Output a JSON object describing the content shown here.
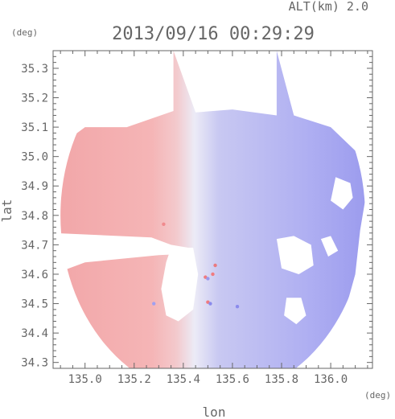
{
  "chart_data": {
    "type": "heatmap",
    "altitude_label": "ALT(km)  2.0",
    "timestamp": "2013/09/16 00:29:29",
    "xlabel": "lon",
    "ylabel": "lat",
    "xunit": "(deg)",
    "yunit": "(deg)",
    "xlim": [
      134.87,
      136.17
    ],
    "ylim": [
      34.28,
      35.36
    ],
    "xticks": [
      "135.0",
      "135.2",
      "135.4",
      "135.6",
      "135.8",
      "136.0"
    ],
    "yticks": [
      "34.3",
      "34.4",
      "34.5",
      "34.6",
      "34.7",
      "34.8",
      "34.9",
      "35.0",
      "35.1",
      "35.2",
      "35.3"
    ],
    "radar_center": {
      "lon": 135.52,
      "lat": 34.8
    },
    "radar_radius_deg": 0.62,
    "colors": {
      "positive": "#f5a3a6",
      "negative": "#a8a8f2",
      "near_zero": "#eeeef8",
      "axis": "#666666"
    }
  }
}
